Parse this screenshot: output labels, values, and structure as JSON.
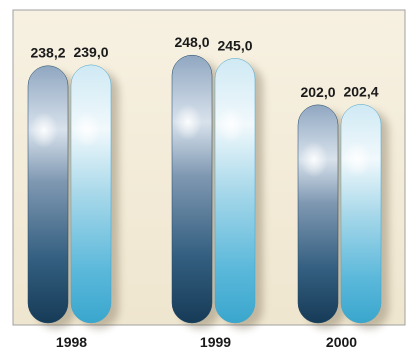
{
  "chart_data": {
    "type": "bar",
    "categories": [
      "1998",
      "1999",
      "2000"
    ],
    "series": [
      {
        "values": [
          238.2,
          248.0,
          202.0
        ],
        "value_labels": [
          "238,2",
          "248,0",
          "202,0"
        ],
        "color": "#2e5f82"
      },
      {
        "values": [
          239.0,
          245.0,
          202.4
        ],
        "value_labels": [
          "239,0",
          "245,0",
          "202,4"
        ],
        "color": "#5bbad8"
      }
    ],
    "ylim": [
      0,
      260
    ],
    "grid": false,
    "legend": "none",
    "title": "",
    "xlabel": "",
    "ylabel": ""
  },
  "colors": {
    "panel_background": "#f3ecd9",
    "panel_border": "#9a9a9a",
    "dark_bar_top": "#8fa6c0",
    "dark_bar_bottom": "#173e5a",
    "light_bar_top": "#dbeef6",
    "light_bar_bottom": "#3fa9cf"
  }
}
